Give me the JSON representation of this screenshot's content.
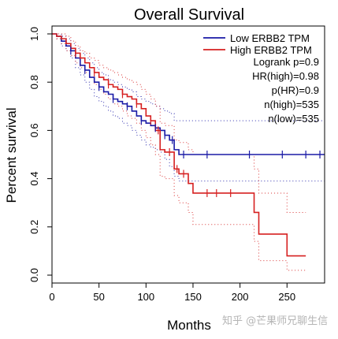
{
  "chart_data": {
    "type": "line",
    "title": "Overall Survival",
    "xlabel": "Months",
    "ylabel": "Percent survival",
    "xlim": [
      0,
      290
    ],
    "ylim": [
      0,
      1.0
    ],
    "x_ticks": [
      0,
      50,
      100,
      150,
      200,
      250
    ],
    "x_tick_labels": [
      "0",
      "50",
      "100",
      "150",
      "200",
      "250"
    ],
    "y_ticks": [
      0.0,
      0.2,
      0.4,
      0.6,
      0.8,
      1.0
    ],
    "y_tick_labels": [
      "0.0",
      "0.2",
      "0.4",
      "0.6",
      "0.8",
      "1.0"
    ],
    "grid": false,
    "legend_position": "top-right",
    "stats": [
      "Logrank p=0.9",
      "HR(high)=0.98",
      "p(HR)=0.9",
      "n(high)=535",
      "n(low)=535"
    ],
    "series": [
      {
        "name": "Low ERBB2 TPM",
        "color": "#1a1aa6",
        "x": [
          0,
          5,
          10,
          15,
          20,
          25,
          30,
          35,
          40,
          45,
          50,
          55,
          60,
          65,
          70,
          75,
          80,
          85,
          90,
          95,
          100,
          105,
          110,
          115,
          120,
          125,
          130,
          135,
          290
        ],
        "y": [
          1.0,
          0.99,
          0.97,
          0.95,
          0.93,
          0.9,
          0.87,
          0.85,
          0.82,
          0.8,
          0.78,
          0.76,
          0.75,
          0.73,
          0.72,
          0.71,
          0.7,
          0.68,
          0.66,
          0.64,
          0.63,
          0.62,
          0.61,
          0.6,
          0.58,
          0.56,
          0.52,
          0.5,
          0.5
        ],
        "ci_upper": [
          1.0,
          1.0,
          0.99,
          0.98,
          0.96,
          0.94,
          0.92,
          0.9,
          0.88,
          0.86,
          0.84,
          0.83,
          0.81,
          0.8,
          0.79,
          0.78,
          0.77,
          0.76,
          0.74,
          0.73,
          0.72,
          0.71,
          0.7,
          0.69,
          0.68,
          0.67,
          0.64,
          0.64,
          0.64
        ],
        "ci_lower": [
          1.0,
          0.98,
          0.95,
          0.93,
          0.9,
          0.86,
          0.83,
          0.8,
          0.77,
          0.74,
          0.72,
          0.7,
          0.68,
          0.66,
          0.65,
          0.63,
          0.62,
          0.6,
          0.58,
          0.56,
          0.54,
          0.53,
          0.52,
          0.51,
          0.48,
          0.45,
          0.41,
          0.39,
          0.39
        ],
        "censor_x": [
          20,
          35,
          50,
          65,
          80,
          95,
          110,
          120,
          128,
          140,
          165,
          210,
          245,
          270,
          285
        ]
      },
      {
        "name": "High ERBB2 TPM",
        "color": "#d62020",
        "x": [
          0,
          5,
          10,
          15,
          20,
          25,
          30,
          35,
          40,
          45,
          50,
          55,
          60,
          65,
          70,
          75,
          80,
          85,
          90,
          95,
          100,
          105,
          110,
          115,
          120,
          130,
          135,
          145,
          150,
          215,
          220,
          250,
          270
        ],
        "y": [
          1.0,
          0.99,
          0.98,
          0.96,
          0.94,
          0.92,
          0.9,
          0.88,
          0.86,
          0.84,
          0.82,
          0.81,
          0.79,
          0.78,
          0.77,
          0.75,
          0.74,
          0.73,
          0.71,
          0.69,
          0.66,
          0.64,
          0.6,
          0.52,
          0.51,
          0.44,
          0.42,
          0.38,
          0.34,
          0.26,
          0.17,
          0.08,
          0.08
        ],
        "ci_upper": [
          1.0,
          1.0,
          1.0,
          0.99,
          0.97,
          0.95,
          0.93,
          0.92,
          0.9,
          0.89,
          0.87,
          0.86,
          0.85,
          0.84,
          0.83,
          0.82,
          0.81,
          0.8,
          0.79,
          0.77,
          0.75,
          0.73,
          0.7,
          0.63,
          0.62,
          0.56,
          0.55,
          0.52,
          0.5,
          0.44,
          0.34,
          0.26,
          0.26
        ],
        "ci_lower": [
          1.0,
          0.98,
          0.96,
          0.93,
          0.91,
          0.88,
          0.86,
          0.84,
          0.82,
          0.79,
          0.77,
          0.75,
          0.73,
          0.71,
          0.7,
          0.68,
          0.66,
          0.65,
          0.63,
          0.6,
          0.57,
          0.54,
          0.5,
          0.41,
          0.4,
          0.33,
          0.3,
          0.26,
          0.21,
          0.14,
          0.06,
          0.02,
          0.02
        ],
        "censor_x": [
          25,
          45,
          60,
          75,
          90,
          105,
          113,
          125,
          133,
          140,
          165,
          175,
          190
        ]
      }
    ]
  },
  "watermark": "知乎 @芒果师兄聊生信"
}
